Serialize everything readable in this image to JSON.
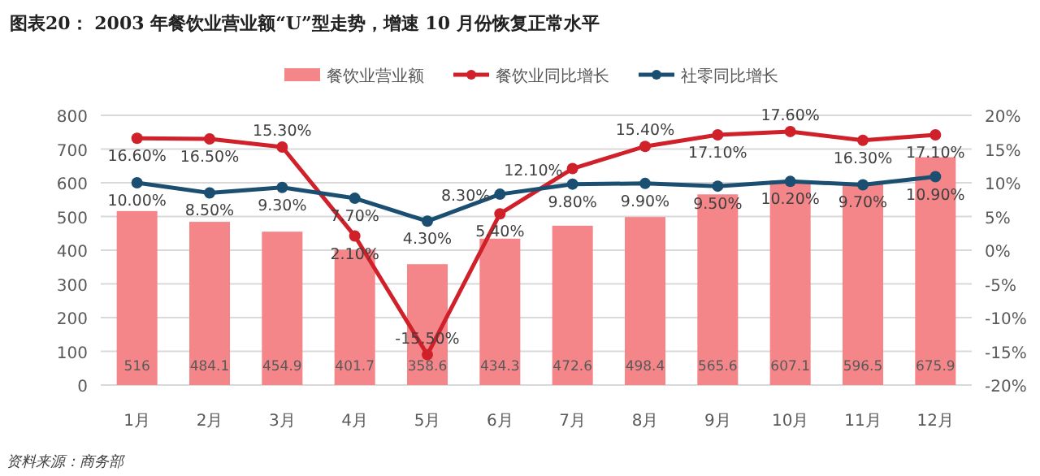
{
  "chart_data": {
    "type": "bar",
    "title": "图表20：   2003 年餐饮业营业额“U”型走势，增速 10 月份恢复正常水平",
    "categories": [
      "1月",
      "2月",
      "3月",
      "4月",
      "5月",
      "6月",
      "7月",
      "8月",
      "9月",
      "10月",
      "11月",
      "12月"
    ],
    "series": [
      {
        "name": "餐饮业营业额",
        "color": "#f4868a",
        "values": [
          516,
          484.1,
          454.9,
          401.7,
          358.6,
          434.3,
          472.6,
          498.4,
          565.6,
          607.1,
          596.5,
          675.9
        ],
        "value_labels": [
          "516",
          "484.1",
          "454.9",
          "401.7",
          "358.6",
          "434.3",
          "472.6",
          "498.4",
          "565.6",
          "607.1",
          "596.5",
          "675.9"
        ]
      },
      {
        "name": "餐饮业同比增长",
        "type": "line",
        "axis": "y2",
        "color": "#d0202a",
        "values": [
          16.6,
          16.5,
          15.3,
          2.1,
          -15.5,
          5.4,
          12.1,
          15.4,
          17.1,
          17.6,
          16.3,
          17.1
        ],
        "value_labels": [
          "16.60%",
          "16.50%",
          "15.30%",
          "2.10%",
          "-15.50%",
          "5.40%",
          "12.10%",
          "15.40%",
          "17.10%",
          "17.60%",
          "16.30%",
          "17.10%"
        ]
      },
      {
        "name": "社零同比增长",
        "type": "line",
        "axis": "y2",
        "color": "#1b4f72",
        "values": [
          10.0,
          8.5,
          9.3,
          7.7,
          4.3,
          8.3,
          9.8,
          9.9,
          9.5,
          10.2,
          9.7,
          10.9
        ],
        "value_labels": [
          "10.00%",
          "8.50%",
          "9.30%",
          "7.70%",
          "4.30%",
          "8.30%",
          "9.80%",
          "9.90%",
          "9.50%",
          "10.20%",
          "9.70%",
          "10.90%"
        ]
      }
    ],
    "ylim": [
      0,
      800
    ],
    "yticks": [
      0,
      100,
      200,
      300,
      400,
      500,
      600,
      700,
      800
    ],
    "y2lim": [
      -20,
      20
    ],
    "y2ticks": [
      {
        "value": -20,
        "label": "-20%"
      },
      {
        "value": -15,
        "label": "-15%"
      },
      {
        "value": -10,
        "label": "-10%"
      },
      {
        "value": -5,
        "label": "-5%"
      },
      {
        "value": 0,
        "label": "0%"
      },
      {
        "value": 5,
        "label": "5%"
      },
      {
        "value": 10,
        "label": "10%"
      },
      {
        "value": 15,
        "label": "15%"
      },
      {
        "value": 20,
        "label": "20%"
      }
    ],
    "grid": "y",
    "legend": "top",
    "marker": "circle",
    "annotations": [
      "资料来源：商务部"
    ]
  }
}
